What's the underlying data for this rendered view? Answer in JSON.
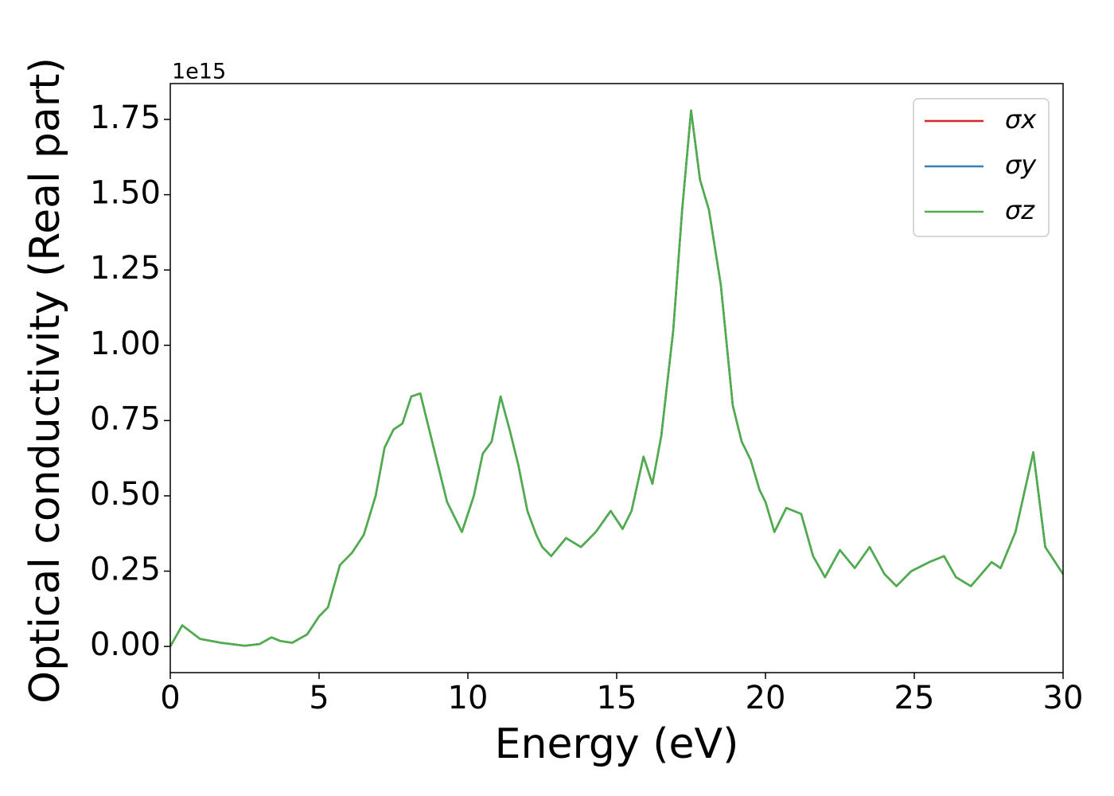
{
  "chart_data": {
    "type": "line",
    "x_label": "Energy (eV)",
    "y_label": "Optical conductivity (Real part)",
    "y_offset_label": "1e15",
    "x": [
      0,
      0.4,
      1.0,
      1.7,
      2.5,
      3.0,
      3.4,
      3.7,
      4.1,
      4.6,
      5.0,
      5.3,
      5.7,
      6.1,
      6.5,
      6.9,
      7.2,
      7.5,
      7.8,
      8.1,
      8.4,
      8.7,
      9.0,
      9.3,
      9.8,
      10.2,
      10.5,
      10.8,
      11.1,
      11.4,
      11.7,
      12.0,
      12.3,
      12.5,
      12.8,
      13.3,
      13.8,
      14.3,
      14.8,
      15.2,
      15.5,
      15.9,
      16.2,
      16.5,
      16.9,
      17.2,
      17.5,
      17.8,
      18.1,
      18.5,
      18.9,
      19.2,
      19.5,
      19.8,
      20.0,
      20.3,
      20.7,
      21.2,
      21.6,
      22.0,
      22.5,
      23.0,
      23.5,
      24.0,
      24.4,
      24.9,
      25.5,
      26.0,
      26.4,
      26.9,
      27.6,
      27.9,
      28.4,
      29.0,
      29.4,
      30.0
    ],
    "series": [
      {
        "name": "σx",
        "color": "#d62728",
        "values": [
          0.0,
          0.07,
          0.025,
          0.012,
          0.002,
          0.008,
          0.03,
          0.018,
          0.012,
          0.04,
          0.1,
          0.13,
          0.27,
          0.31,
          0.37,
          0.5,
          0.66,
          0.72,
          0.74,
          0.83,
          0.84,
          0.72,
          0.6,
          0.48,
          0.38,
          0.5,
          0.64,
          0.68,
          0.83,
          0.72,
          0.6,
          0.45,
          0.37,
          0.33,
          0.3,
          0.36,
          0.33,
          0.38,
          0.45,
          0.39,
          0.45,
          0.63,
          0.54,
          0.7,
          1.05,
          1.45,
          1.78,
          1.55,
          1.45,
          1.2,
          0.8,
          0.68,
          0.62,
          0.52,
          0.48,
          0.38,
          0.46,
          0.44,
          0.3,
          0.23,
          0.32,
          0.26,
          0.33,
          0.24,
          0.2,
          0.25,
          0.28,
          0.3,
          0.23,
          0.2,
          0.28,
          0.26,
          0.38,
          0.645,
          0.33,
          0.24
        ]
      },
      {
        "name": "σy",
        "color": "#377eb8",
        "values": [
          0.0,
          0.07,
          0.025,
          0.012,
          0.002,
          0.008,
          0.03,
          0.018,
          0.012,
          0.04,
          0.1,
          0.13,
          0.27,
          0.31,
          0.37,
          0.5,
          0.66,
          0.72,
          0.74,
          0.83,
          0.84,
          0.72,
          0.6,
          0.48,
          0.38,
          0.5,
          0.64,
          0.68,
          0.83,
          0.72,
          0.6,
          0.45,
          0.37,
          0.33,
          0.3,
          0.36,
          0.33,
          0.38,
          0.45,
          0.39,
          0.45,
          0.63,
          0.54,
          0.7,
          1.05,
          1.45,
          1.78,
          1.55,
          1.45,
          1.2,
          0.8,
          0.68,
          0.62,
          0.52,
          0.48,
          0.38,
          0.46,
          0.44,
          0.3,
          0.23,
          0.32,
          0.26,
          0.33,
          0.24,
          0.2,
          0.25,
          0.28,
          0.3,
          0.23,
          0.2,
          0.28,
          0.26,
          0.38,
          0.645,
          0.33,
          0.24
        ]
      },
      {
        "name": "σz",
        "color": "#4daf4a",
        "values": [
          0.0,
          0.07,
          0.025,
          0.012,
          0.002,
          0.008,
          0.03,
          0.018,
          0.012,
          0.04,
          0.1,
          0.13,
          0.27,
          0.31,
          0.37,
          0.5,
          0.66,
          0.72,
          0.74,
          0.83,
          0.84,
          0.72,
          0.6,
          0.48,
          0.38,
          0.5,
          0.64,
          0.68,
          0.83,
          0.72,
          0.6,
          0.45,
          0.37,
          0.33,
          0.3,
          0.36,
          0.33,
          0.38,
          0.45,
          0.39,
          0.45,
          0.63,
          0.54,
          0.7,
          1.05,
          1.45,
          1.78,
          1.55,
          1.45,
          1.2,
          0.8,
          0.68,
          0.62,
          0.52,
          0.48,
          0.38,
          0.46,
          0.44,
          0.3,
          0.23,
          0.32,
          0.26,
          0.33,
          0.24,
          0.2,
          0.25,
          0.28,
          0.3,
          0.23,
          0.2,
          0.28,
          0.26,
          0.38,
          0.645,
          0.33,
          0.24
        ]
      }
    ],
    "xlim": [
      0,
      30
    ],
    "xticks": [
      0,
      5,
      10,
      15,
      20,
      25,
      30
    ],
    "ylim": [
      -0.087,
      1.869
    ],
    "yticks": [
      {
        "value": 0,
        "label": "0.00"
      },
      {
        "value": 0.25,
        "label": "0.25"
      },
      {
        "value": 0.5,
        "label": "0.50"
      },
      {
        "value": 0.75,
        "label": "0.75"
      },
      {
        "value": 1.0,
        "label": "1.00"
      },
      {
        "value": 1.25,
        "label": "1.25"
      },
      {
        "value": 1.5,
        "label": "1.50"
      },
      {
        "value": 1.75,
        "label": "1.75"
      }
    ],
    "grid": false,
    "legend": "upper right"
  }
}
